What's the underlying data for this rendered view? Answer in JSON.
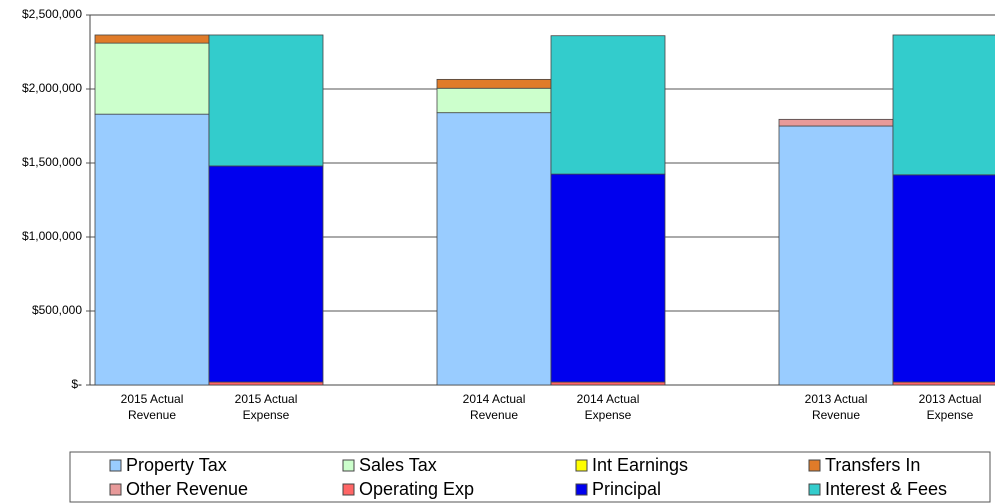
{
  "chart_data": {
    "type": "stacked_bar",
    "categories": [
      "2015 Actual Revenue",
      "2015 Actual Expense",
      null,
      "2014 Actual Revenue",
      "2014 Actual Expense",
      null,
      "2013 Actual Revenue",
      "2013 Actual Expense"
    ],
    "series": [
      {
        "name": "Property Tax",
        "color": "#99ccff",
        "values": [
          1830000,
          null,
          null,
          1840000,
          null,
          null,
          1750000,
          null
        ]
      },
      {
        "name": "Sales Tax",
        "color": "#ccffcc",
        "values": [
          480000,
          null,
          null,
          165000,
          null,
          null,
          0,
          null
        ]
      },
      {
        "name": "Int Earnings",
        "color": "#ffff00",
        "values": [
          0,
          null,
          null,
          0,
          null,
          null,
          0,
          null
        ]
      },
      {
        "name": "Transfers In",
        "color": "#e07b29",
        "values": [
          55000,
          null,
          null,
          60000,
          null,
          null,
          0,
          null
        ]
      },
      {
        "name": "Other Revenue",
        "color": "#e89a9a",
        "values": [
          0,
          null,
          null,
          0,
          null,
          null,
          45000,
          null
        ]
      },
      {
        "name": "Operating Exp",
        "color": "#ff6666",
        "values": [
          null,
          20000,
          null,
          null,
          20000,
          null,
          null,
          20000
        ]
      },
      {
        "name": "Principal",
        "color": "#0000ee",
        "values": [
          null,
          1460000,
          null,
          null,
          1405000,
          null,
          null,
          1400000
        ]
      },
      {
        "name": "Interest & Fees",
        "color": "#33cccc",
        "values": [
          null,
          885000,
          null,
          null,
          935000,
          null,
          null,
          945000
        ]
      }
    ],
    "ylim": [
      0,
      2500000
    ],
    "yticks": [
      {
        "value": 0,
        "label": "$-"
      },
      {
        "value": 500000,
        "label": "$500,000"
      },
      {
        "value": 1000000,
        "label": "$1,000,000"
      },
      {
        "value": 1500000,
        "label": "$1,500,000"
      },
      {
        "value": 2000000,
        "label": "$2,000,000"
      },
      {
        "value": 2500000,
        "label": "$2,500,000"
      }
    ],
    "grid": true,
    "legend": "bottom"
  }
}
